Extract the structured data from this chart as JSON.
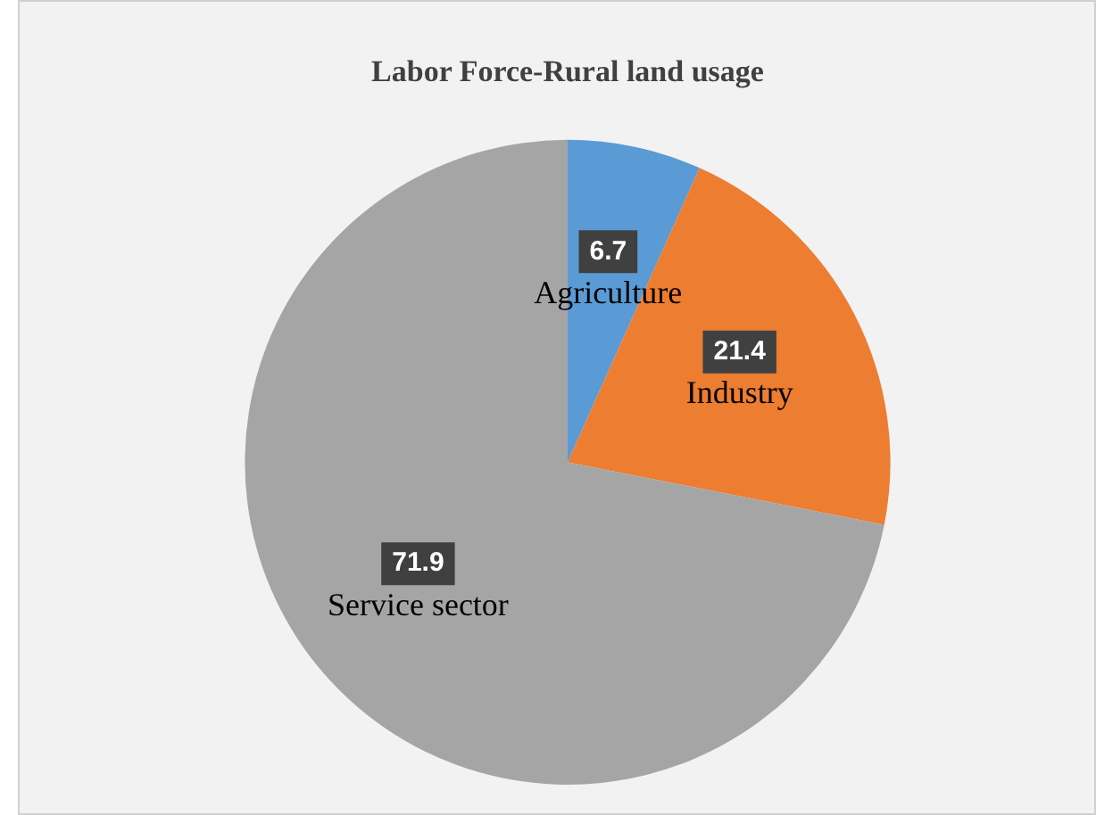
{
  "chart_data": {
    "type": "pie",
    "title": "Labor Force-Rural land usage",
    "categories": [
      "Agriculture",
      "Industry",
      "Service sector"
    ],
    "values": [
      6.7,
      21.4,
      71.9
    ],
    "colors": [
      "#5b9bd5",
      "#ed7d31",
      "#a5a5a5"
    ],
    "data_labels": true,
    "legend": false
  }
}
